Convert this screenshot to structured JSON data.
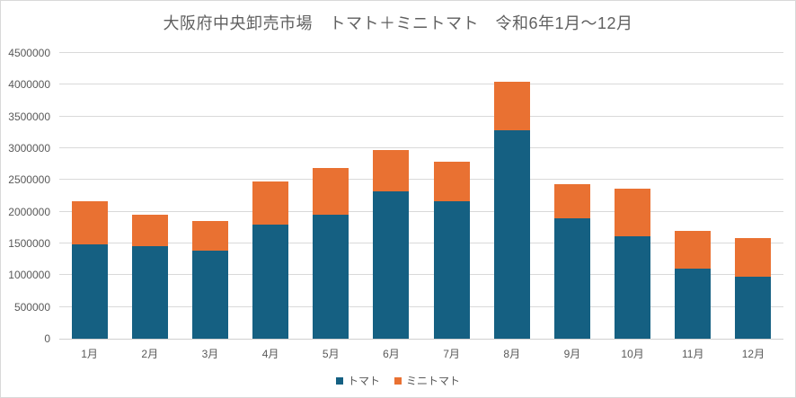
{
  "chart_data": {
    "type": "bar",
    "stacked": true,
    "title": "大阪府中央卸売市場　トマト＋ミニトマト　令和6年1月～12月",
    "categories": [
      "1月",
      "2月",
      "3月",
      "4月",
      "5月",
      "6月",
      "7月",
      "8月",
      "9月",
      "10月",
      "11月",
      "12月"
    ],
    "series": [
      {
        "name": "トマト",
        "color": "#156082",
        "values": [
          1490000,
          1460000,
          1380000,
          1800000,
          1960000,
          2320000,
          2170000,
          3280000,
          1890000,
          1620000,
          1100000,
          970000
        ]
      },
      {
        "name": "ミニトマト",
        "color": "#E97132",
        "values": [
          670000,
          500000,
          480000,
          670000,
          730000,
          650000,
          620000,
          770000,
          540000,
          740000,
          600000,
          610000
        ]
      }
    ],
    "xlabel": "",
    "ylabel": "",
    "ylim": [
      0,
      4500000
    ],
    "ytick_step": 500000,
    "y_ticks": [
      "0",
      "500000",
      "1000000",
      "1500000",
      "2000000",
      "2500000",
      "3000000",
      "3500000",
      "4000000",
      "4500000"
    ],
    "grid": true,
    "legend_position": "bottom",
    "colors": {
      "gridline": "#d9d9d9",
      "axis_text": "#595959",
      "title_text": "#606060",
      "frame_border": "#d9d9d9",
      "background": "#ffffff"
    }
  }
}
